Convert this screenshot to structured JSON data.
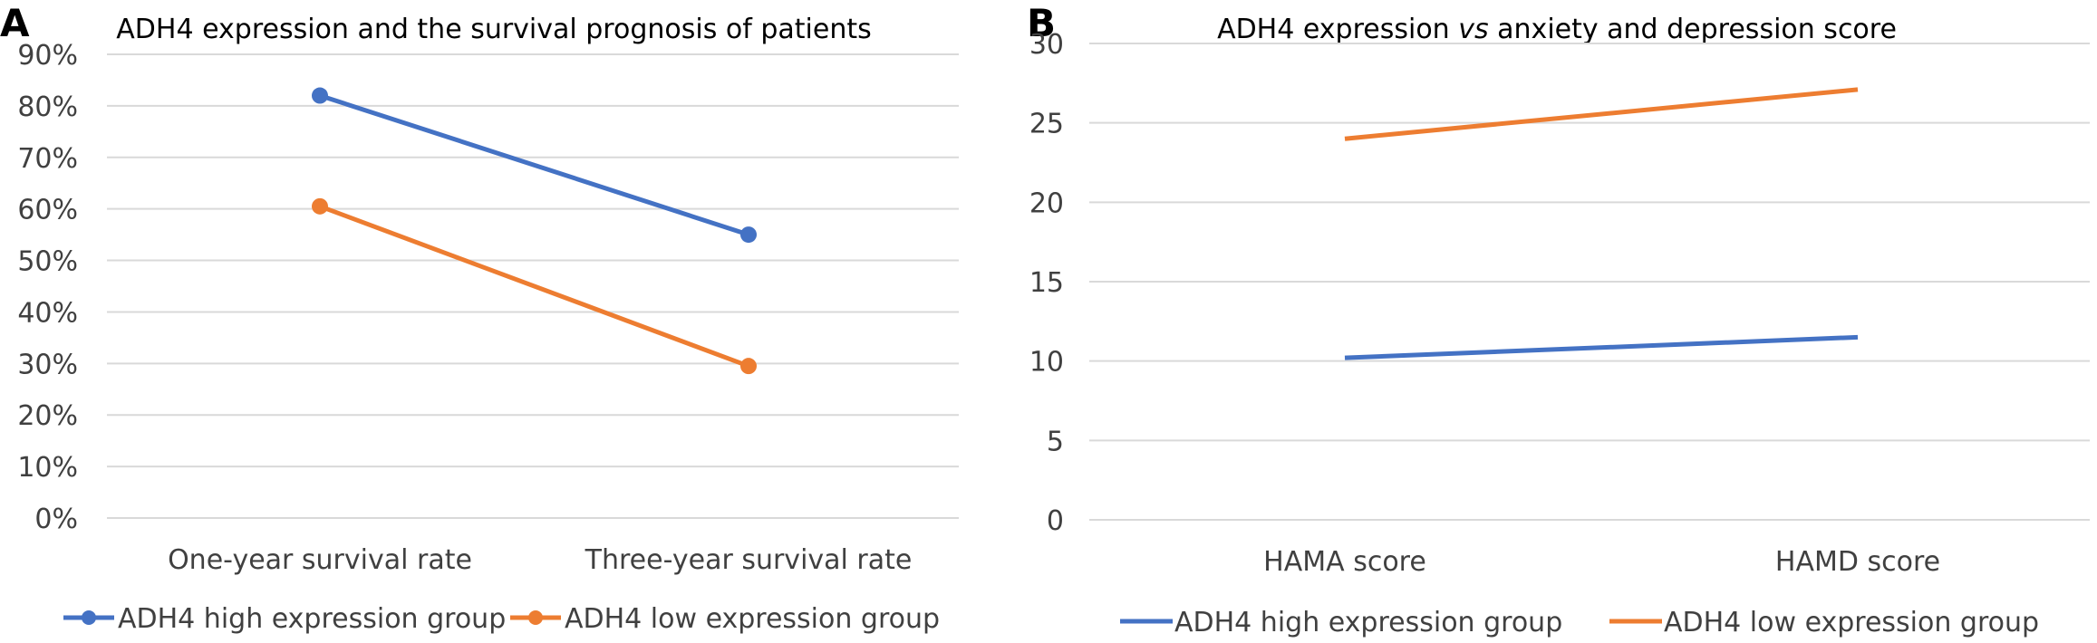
{
  "chart_data": [
    {
      "type": "line",
      "panel": "A",
      "title": "ADH4 expression and the survival prognosis of patients",
      "categories": [
        "One-year survival rate",
        "Three-year survival rate"
      ],
      "y_ticks": [
        "90%",
        "80%",
        "70%",
        "60%",
        "50%",
        "40%",
        "30%",
        "20%",
        "10%",
        "0%"
      ],
      "ylim": [
        0,
        90
      ],
      "markers": true,
      "series": [
        {
          "name": "ADH4 high expression group",
          "values": [
            82,
            55
          ],
          "color": "#4472c4"
        },
        {
          "name": "ADH4 low expression group",
          "values": [
            60.5,
            29.5
          ],
          "color": "#ed7d31"
        }
      ],
      "legend_position": "bottom",
      "grid": true
    },
    {
      "type": "line",
      "panel": "B",
      "title_parts": [
        "ADH4 expression ",
        "vs",
        " anxiety and depression score"
      ],
      "categories": [
        "HAMA score",
        "HAMD score"
      ],
      "y_ticks": [
        "30",
        "25",
        "20",
        "15",
        "10",
        "5",
        "0"
      ],
      "ylim": [
        0,
        30
      ],
      "markers": false,
      "series": [
        {
          "name": "ADH4 high expression group",
          "values": [
            10.2,
            11.5
          ],
          "color": "#4472c4"
        },
        {
          "name": "ADH4 low expression group",
          "values": [
            24,
            27.1
          ],
          "color": "#ed7d31"
        }
      ],
      "legend_position": "bottom",
      "grid": true
    }
  ]
}
